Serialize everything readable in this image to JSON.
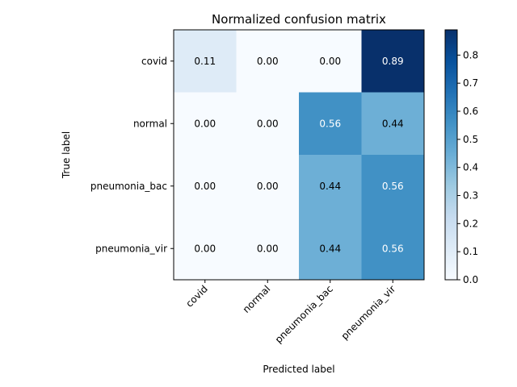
{
  "chart_data": {
    "type": "heatmap",
    "title": "Normalized confusion matrix",
    "xlabel": "Predicted label",
    "ylabel": "True label",
    "x_categories": [
      "covid",
      "normal",
      "pneumonia_bac",
      "pneumonia_vir"
    ],
    "y_categories": [
      "covid",
      "normal",
      "pneumonia_bac",
      "pneumonia_vir"
    ],
    "values": [
      [
        0.11,
        0.0,
        0.0,
        0.89
      ],
      [
        0.0,
        0.0,
        0.56,
        0.44
      ],
      [
        0.0,
        0.0,
        0.44,
        0.56
      ],
      [
        0.0,
        0.0,
        0.44,
        0.56
      ]
    ],
    "value_labels": [
      [
        "0.11",
        "0.00",
        "0.00",
        "0.89"
      ],
      [
        "0.00",
        "0.00",
        "0.56",
        "0.44"
      ],
      [
        "0.00",
        "0.00",
        "0.44",
        "0.56"
      ],
      [
        "0.00",
        "0.00",
        "0.44",
        "0.56"
      ]
    ],
    "colormap": "Blues",
    "vmin": 0.0,
    "vmax": 0.89,
    "colorbar_ticks": [
      0.0,
      0.1,
      0.2,
      0.3,
      0.4,
      0.5,
      0.6,
      0.7,
      0.8
    ],
    "colorbar_tick_labels": [
      "0.0",
      "0.1",
      "0.2",
      "0.3",
      "0.4",
      "0.5",
      "0.6",
      "0.7",
      "0.8"
    ],
    "x_tick_rotation_deg": 45,
    "text_threshold": 0.445,
    "grid": false,
    "colors": {
      "text_dark": "#000000",
      "text_light": "#ffffff",
      "spine": "#000000"
    }
  }
}
